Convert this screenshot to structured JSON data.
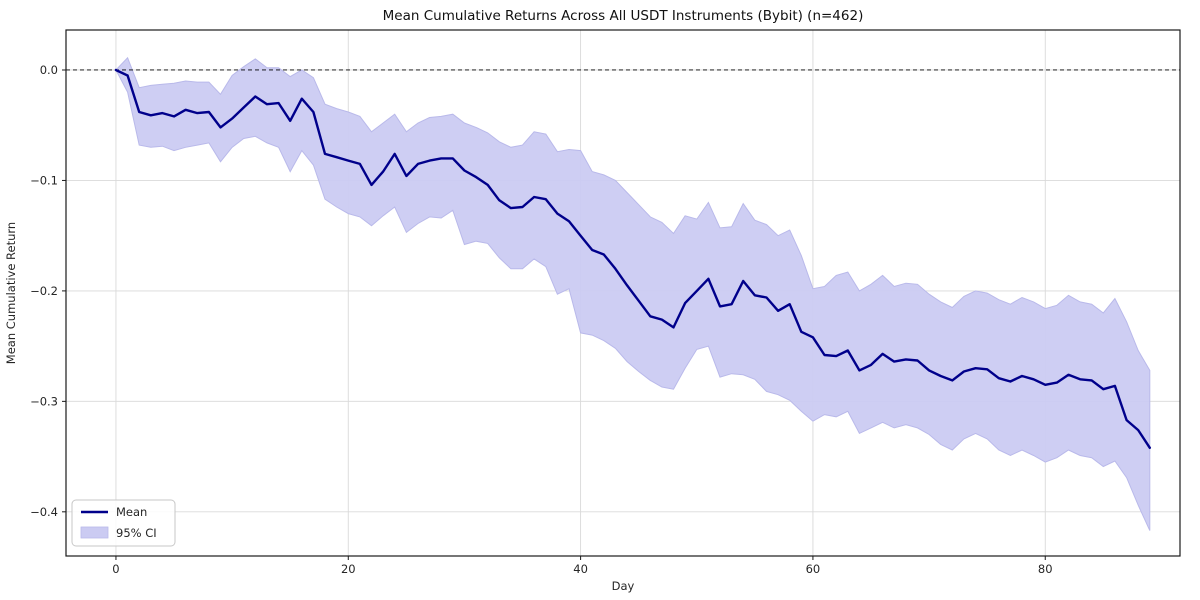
{
  "figure": {
    "title": "Mean Cumulative Returns Across All USDT Instruments (Bybit) (n=462)",
    "xlabel": "Day",
    "ylabel": "Mean Cumulative Return"
  },
  "legend": {
    "position": "lower left",
    "items": [
      {
        "label": "Mean",
        "type": "line"
      },
      {
        "label": "95% CI",
        "type": "patch"
      }
    ]
  },
  "colors": {
    "mean_line": "#00008b",
    "ci_fill": "#cbcbf2",
    "ci_edge": "#b9b9ea",
    "grid": "#d9d9d9",
    "zero_line": "#000000",
    "spine": "#1a1a1a",
    "tick_text": "#262626"
  },
  "chart_data": {
    "type": "line",
    "title": "Mean Cumulative Returns Across All USDT Instruments (Bybit) (n=462)",
    "xlabel": "Day",
    "ylabel": "Mean Cumulative Return",
    "grid": true,
    "zero_line_dashed": true,
    "legend_position": "lower left",
    "x_ticks": [
      0,
      20,
      40,
      60,
      80
    ],
    "y_ticks": [
      0.0,
      -0.1,
      -0.2,
      -0.3,
      -0.4
    ],
    "y_tick_labels": [
      "0.0",
      "−0.1",
      "−0.2",
      "−0.3",
      "−0.4"
    ],
    "x_tick_labels": [
      "0",
      "20",
      "40",
      "60",
      "80"
    ],
    "xlim": [
      -4.3,
      91.6
    ],
    "ylim": [
      -0.44,
      0.0362
    ],
    "x": [
      0,
      1,
      2,
      3,
      4,
      5,
      6,
      7,
      8,
      9,
      10,
      11,
      12,
      13,
      14,
      15,
      16,
      17,
      18,
      19,
      20,
      21,
      22,
      23,
      24,
      25,
      26,
      27,
      28,
      29,
      30,
      31,
      32,
      33,
      34,
      35,
      36,
      37,
      38,
      39,
      40,
      41,
      42,
      43,
      44,
      45,
      46,
      47,
      48,
      49,
      50,
      51,
      52,
      53,
      54,
      55,
      56,
      57,
      58,
      59,
      60,
      61,
      62,
      63,
      64,
      65,
      66,
      67,
      68,
      69,
      70,
      71,
      72,
      73,
      74,
      75,
      76,
      77,
      78,
      79,
      80,
      81,
      82,
      83,
      84,
      85,
      86,
      87,
      88,
      89
    ],
    "series": [
      {
        "name": "Mean",
        "values": [
          0.0,
          -0.005,
          -0.038,
          -0.041,
          -0.039,
          -0.042,
          -0.036,
          -0.039,
          -0.038,
          -0.052,
          -0.044,
          -0.034,
          -0.024,
          -0.031,
          -0.03,
          -0.046,
          -0.026,
          -0.038,
          -0.076,
          -0.079,
          -0.082,
          -0.085,
          -0.104,
          -0.092,
          -0.076,
          -0.096,
          -0.085,
          -0.082,
          -0.08,
          -0.08,
          -0.091,
          -0.097,
          -0.104,
          -0.118,
          -0.125,
          -0.124,
          -0.115,
          -0.117,
          -0.13,
          -0.137,
          -0.15,
          -0.163,
          -0.167,
          -0.18,
          -0.195,
          -0.209,
          -0.223,
          -0.226,
          -0.233,
          -0.211,
          -0.2,
          -0.189,
          -0.214,
          -0.212,
          -0.191,
          -0.204,
          -0.206,
          -0.218,
          -0.212,
          -0.237,
          -0.242,
          -0.258,
          -0.259,
          -0.254,
          -0.272,
          -0.267,
          -0.257,
          -0.264,
          -0.262,
          -0.263,
          -0.272,
          -0.277,
          -0.281,
          -0.273,
          -0.27,
          -0.271,
          -0.279,
          -0.282,
          -0.277,
          -0.28,
          -0.285,
          -0.283,
          -0.276,
          -0.28,
          -0.281,
          -0.289,
          -0.286,
          -0.317,
          -0.326,
          -0.342
        ]
      },
      {
        "name": "95% CI upper",
        "values": [
          0.0,
          0.011,
          -0.016,
          -0.014,
          -0.013,
          -0.012,
          -0.01,
          -0.011,
          -0.011,
          -0.022,
          -0.005,
          0.003,
          0.01,
          0.002,
          0.002,
          -0.006,
          0.0,
          -0.007,
          -0.031,
          -0.035,
          -0.038,
          -0.042,
          -0.056,
          -0.048,
          -0.04,
          -0.056,
          -0.048,
          -0.043,
          -0.042,
          -0.04,
          -0.048,
          -0.052,
          -0.057,
          -0.065,
          -0.07,
          -0.068,
          -0.056,
          -0.058,
          -0.074,
          -0.072,
          -0.073,
          -0.092,
          -0.095,
          -0.1,
          -0.111,
          -0.122,
          -0.133,
          -0.138,
          -0.148,
          -0.132,
          -0.135,
          -0.12,
          -0.143,
          -0.142,
          -0.121,
          -0.136,
          -0.14,
          -0.15,
          -0.145,
          -0.168,
          -0.198,
          -0.196,
          -0.186,
          -0.183,
          -0.2,
          -0.194,
          -0.186,
          -0.196,
          -0.193,
          -0.194,
          -0.203,
          -0.21,
          -0.215,
          -0.205,
          -0.2,
          -0.202,
          -0.208,
          -0.212,
          -0.206,
          -0.21,
          -0.216,
          -0.213,
          -0.204,
          -0.21,
          -0.212,
          -0.22,
          -0.207,
          -0.228,
          -0.254,
          -0.272
        ]
      },
      {
        "name": "95% CI lower",
        "values": [
          0.0,
          -0.02,
          -0.068,
          -0.07,
          -0.069,
          -0.073,
          -0.07,
          -0.068,
          -0.066,
          -0.083,
          -0.07,
          -0.062,
          -0.06,
          -0.066,
          -0.07,
          -0.092,
          -0.073,
          -0.086,
          -0.117,
          -0.124,
          -0.13,
          -0.133,
          -0.141,
          -0.132,
          -0.124,
          -0.147,
          -0.139,
          -0.133,
          -0.134,
          -0.127,
          -0.158,
          -0.155,
          -0.157,
          -0.17,
          -0.18,
          -0.18,
          -0.171,
          -0.178,
          -0.203,
          -0.198,
          -0.238,
          -0.24,
          -0.245,
          -0.252,
          -0.264,
          -0.273,
          -0.281,
          -0.287,
          -0.289,
          -0.27,
          -0.253,
          -0.25,
          -0.278,
          -0.275,
          -0.276,
          -0.28,
          -0.291,
          -0.294,
          -0.299,
          -0.309,
          -0.318,
          -0.312,
          -0.314,
          -0.309,
          -0.329,
          -0.324,
          -0.319,
          -0.324,
          -0.321,
          -0.324,
          -0.33,
          -0.339,
          -0.344,
          -0.334,
          -0.329,
          -0.334,
          -0.344,
          -0.349,
          -0.344,
          -0.349,
          -0.355,
          -0.351,
          -0.344,
          -0.349,
          -0.351,
          -0.359,
          -0.354,
          -0.369,
          -0.394,
          -0.417
        ]
      }
    ]
  }
}
